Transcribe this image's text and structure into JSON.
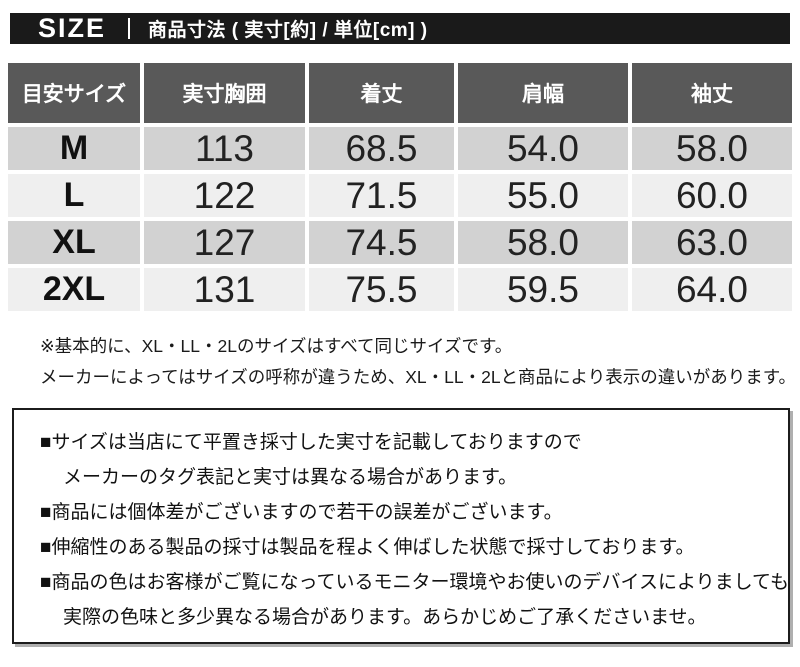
{
  "header": {
    "size_label": "SIZE",
    "title": "商品寸法 ( 実寸[約] / 単位[cm] )"
  },
  "table": {
    "columns": [
      "目安サイズ",
      "実寸胸囲",
      "着丈",
      "肩幅",
      "袖丈"
    ],
    "rows": [
      {
        "size": "M",
        "values": [
          "113",
          "68.5",
          "54.0",
          "58.0"
        ]
      },
      {
        "size": "L",
        "values": [
          "122",
          "71.5",
          "55.0",
          "60.0"
        ]
      },
      {
        "size": "XL",
        "values": [
          "127",
          "74.5",
          "58.0",
          "63.0"
        ]
      },
      {
        "size": "2XL",
        "values": [
          "131",
          "75.5",
          "59.5",
          "64.0"
        ]
      }
    ]
  },
  "notes": {
    "line1": "※基本的に、XL・LL・2Lのサイズはすべて同じサイズです。",
    "line2": "メーカーによってはサイズの呼称が違うため、XL・LL・2Lと商品により表示の違いがあります。"
  },
  "disclaimer": {
    "lines": [
      "■サイズは当店にて平置き採寸した実寸を記載しておりますので",
      "メーカーのタグ表記と実寸は異なる場合があります。",
      "■商品には個体差がございますので若干の誤差がございます。",
      "■伸縮性のある製品の採寸は製品を程よく伸ばした状態で採寸しております。",
      "■商品の色はお客様がご覧になっているモニター環境やお使いのデバイスによりましても",
      "実際の色味と多少異なる場合があります。あらかじめご了承くださいませ。"
    ]
  },
  "colors": {
    "title_bar_bg": "#1a1a1a",
    "table_header_bg": "#595959",
    "row_dark": "#d2d2d2",
    "row_light": "#efefef",
    "text": "#1a1a1a",
    "box_border": "#1c1c1c"
  }
}
